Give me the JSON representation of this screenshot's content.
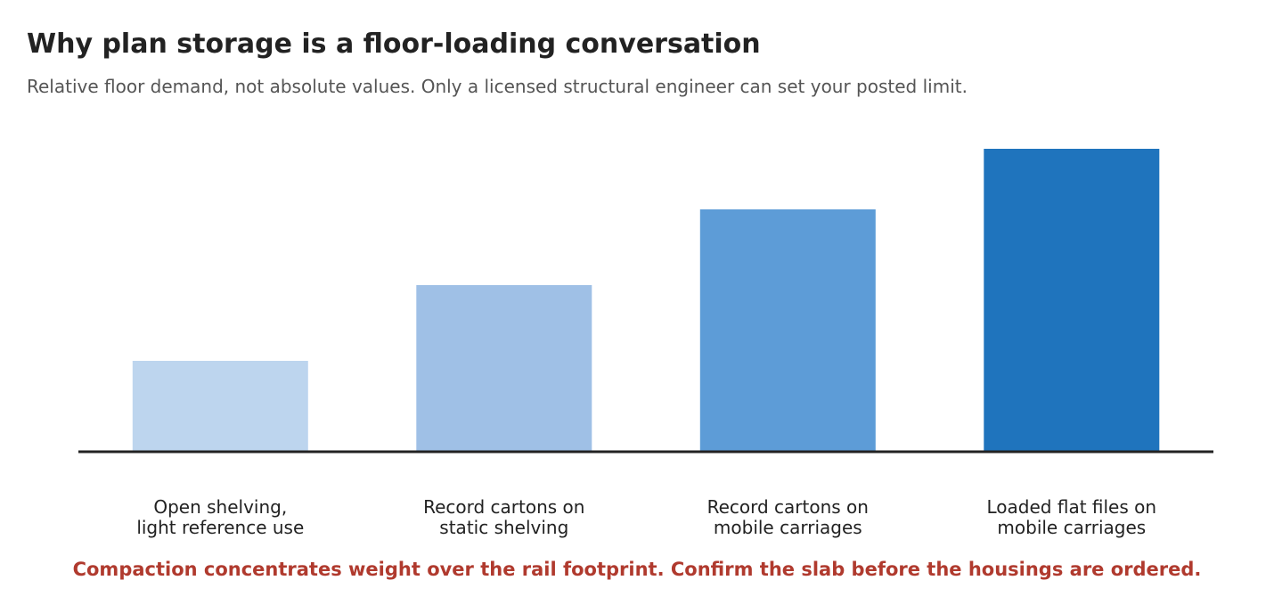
{
  "chart_data": {
    "type": "bar",
    "title": "Why plan storage is a floor-loading conversation",
    "subtitle": "Relative floor demand, not absolute values. Only a licensed structural engineer can set your posted limit.",
    "categories": [
      [
        "Open shelving,",
        "light reference use"
      ],
      [
        "Record cartons on",
        "static shelving"
      ],
      [
        "Record cartons on",
        "mobile carriages"
      ],
      [
        "Loaded flat files on",
        "mobile carriages"
      ]
    ],
    "values": [
      3,
      5.5,
      8,
      10
    ],
    "ylim": [
      0,
      10
    ],
    "bar_colors": [
      "#bdd5ee",
      "#9fc0e6",
      "#5d9cd7",
      "#1f74bd"
    ],
    "baseline_color": "#222222",
    "xlabel": "",
    "ylabel": "",
    "grid": false,
    "legend": "none",
    "footnote": "Compaction concentrates weight over the rail footprint. Confirm the slab before the housings are ordered.",
    "footnote_color": "#b03a2e"
  }
}
